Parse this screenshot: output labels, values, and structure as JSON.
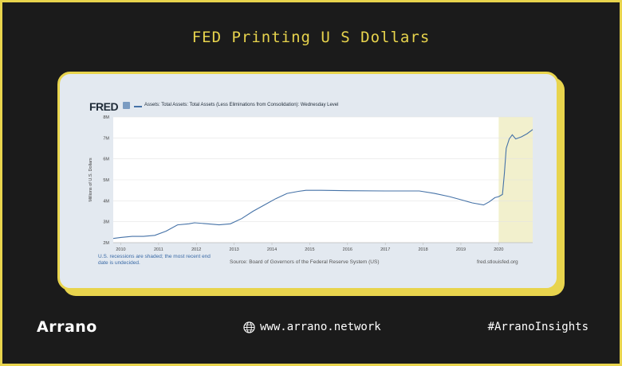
{
  "header": {
    "title": "FED Printing U S Dollars"
  },
  "fred": {
    "logo": "FRED",
    "note": "U.S. recessions are shaded; the most recent end date is undecided.",
    "source": "Source: Board of Governors of the Federal Reserve System (US)",
    "site": "fred.stlouisfed.org"
  },
  "footer": {
    "brand": "Arrano",
    "website": "www.arrano.network",
    "hashtag": "#ArranoInsights"
  },
  "colors": {
    "accent": "#e8d44d",
    "line": "#4572a7",
    "recession": "#f2f0cd",
    "background": "#1b1b1b"
  },
  "chart_data": {
    "type": "line",
    "title": "",
    "xlabel": "",
    "ylabel": "Millions of U.S. Dollars",
    "xlim": [
      2009.8,
      2020.9
    ],
    "ylim": [
      2,
      8
    ],
    "y_ticks": [
      2,
      3,
      4,
      5,
      6,
      7,
      8
    ],
    "y_tick_labels": [
      "2M",
      "3M",
      "4M",
      "5M",
      "6M",
      "7M",
      "8M"
    ],
    "x_ticks": [
      2010,
      2011,
      2012,
      2013,
      2014,
      2015,
      2016,
      2017,
      2018,
      2019,
      2020
    ],
    "x_tick_labels": [
      "2010",
      "2011",
      "2012",
      "2013",
      "2014",
      "2015",
      "2016",
      "2017",
      "2018",
      "2019",
      "2020"
    ],
    "grid": true,
    "recession_shading": [
      2020.0,
      2020.9
    ],
    "series": [
      {
        "name": "Assets: Total Assets: Total Assets (Less Eliminations from Consolidation): Wednesday Level",
        "x": [
          2009.8,
          2010.0,
          2010.3,
          2010.6,
          2010.9,
          2011.2,
          2011.5,
          2011.8,
          2011.95,
          2012.3,
          2012.6,
          2012.9,
          2013.2,
          2013.5,
          2013.8,
          2014.1,
          2014.4,
          2014.7,
          2014.9,
          2015.3,
          2016.0,
          2017.0,
          2017.9,
          2018.3,
          2018.7,
          2019.0,
          2019.3,
          2019.6,
          2019.75,
          2019.9,
          2020.0,
          2020.1,
          2020.15,
          2020.2,
          2020.28,
          2020.36,
          2020.45,
          2020.6,
          2020.75,
          2020.9
        ],
        "values": [
          2.2,
          2.25,
          2.3,
          2.3,
          2.35,
          2.55,
          2.85,
          2.9,
          2.95,
          2.9,
          2.85,
          2.9,
          3.15,
          3.5,
          3.8,
          4.1,
          4.35,
          4.45,
          4.5,
          4.5,
          4.48,
          4.47,
          4.47,
          4.35,
          4.2,
          4.05,
          3.9,
          3.8,
          3.95,
          4.15,
          4.2,
          4.3,
          5.3,
          6.5,
          6.95,
          7.15,
          6.95,
          7.05,
          7.2,
          7.4
        ]
      }
    ]
  }
}
